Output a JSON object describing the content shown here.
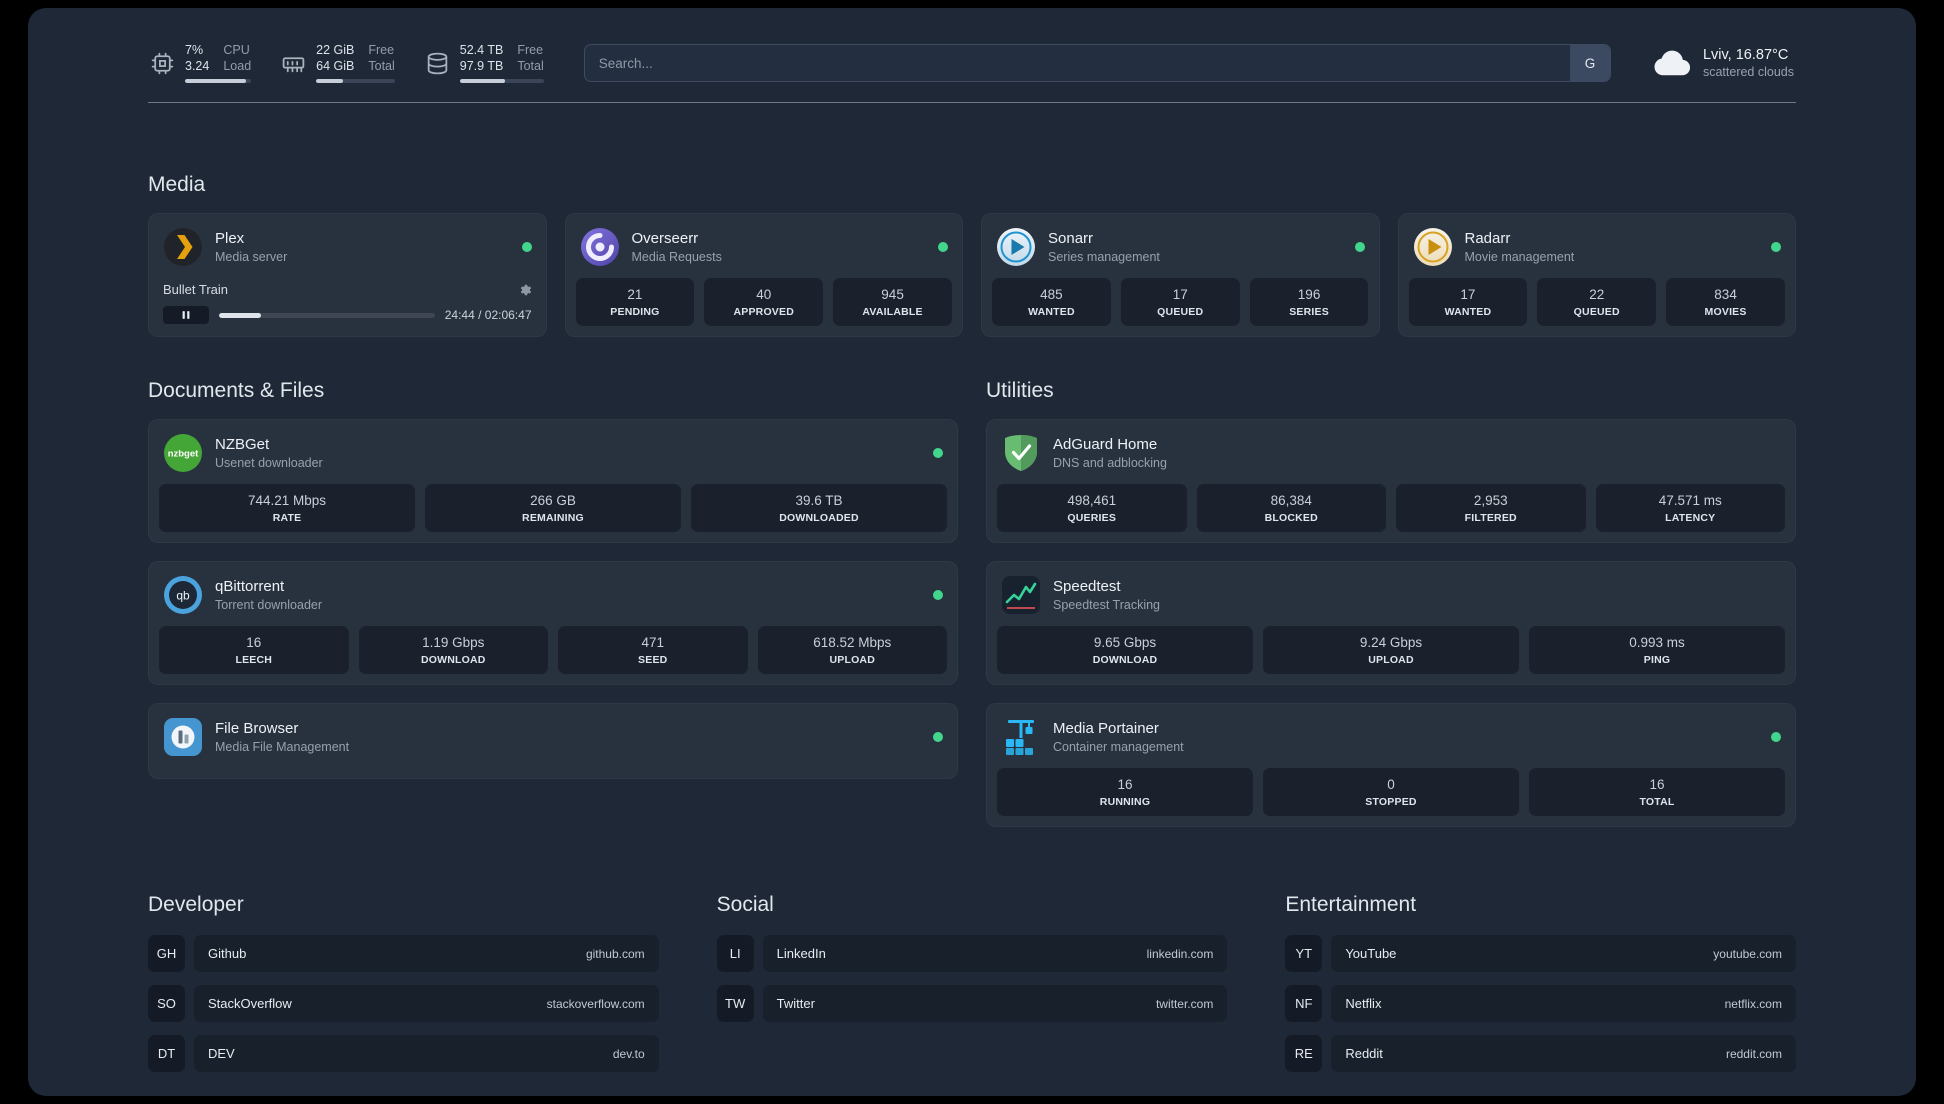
{
  "topbar": {
    "resources": [
      {
        "icon": "cpu",
        "col1": [
          "7%",
          "3.24"
        ],
        "col2": [
          "CPU",
          "Load"
        ],
        "bar_percent": 92
      },
      {
        "icon": "memory",
        "col1": [
          "22 GiB",
          "64 GiB"
        ],
        "col2": [
          "Free",
          "Total"
        ],
        "bar_percent": 34
      },
      {
        "icon": "disk",
        "col1": [
          "52.4 TB",
          "97.9 TB"
        ],
        "col2": [
          "Free",
          "Total"
        ],
        "bar_percent": 54
      }
    ],
    "search": {
      "placeholder": "Search...",
      "button_label": "G"
    },
    "weather": {
      "location": "Lviv, 16.87°C",
      "condition": "scattered clouds"
    }
  },
  "media": {
    "title": "Media",
    "cards": [
      {
        "id": "plex",
        "title": "Plex",
        "subtitle": "Media server",
        "status": "online",
        "player": {
          "track": "Bullet Train",
          "time": "24:44 / 02:06:47",
          "progress_percent": 19.5
        }
      },
      {
        "id": "overseerr",
        "title": "Overseerr",
        "subtitle": "Media Requests",
        "status": "online",
        "stats": [
          {
            "value": "21",
            "label": "PENDING"
          },
          {
            "value": "40",
            "label": "APPROVED"
          },
          {
            "value": "945",
            "label": "AVAILABLE"
          }
        ]
      },
      {
        "id": "sonarr",
        "title": "Sonarr",
        "subtitle": "Series management",
        "status": "online",
        "stats": [
          {
            "value": "485",
            "label": "WANTED"
          },
          {
            "value": "17",
            "label": "QUEUED"
          },
          {
            "value": "196",
            "label": "SERIES"
          }
        ]
      },
      {
        "id": "radarr",
        "title": "Radarr",
        "subtitle": "Movie management",
        "status": "online",
        "stats": [
          {
            "value": "17",
            "label": "WANTED"
          },
          {
            "value": "22",
            "label": "QUEUED"
          },
          {
            "value": "834",
            "label": "MOVIES"
          }
        ]
      }
    ]
  },
  "documents": {
    "title": "Documents & Files",
    "cards": [
      {
        "id": "nzbget",
        "title": "NZBGet",
        "subtitle": "Usenet downloader",
        "status": "online",
        "stats": [
          {
            "value": "744.21 Mbps",
            "label": "RATE"
          },
          {
            "value": "266 GB",
            "label": "REMAINING"
          },
          {
            "value": "39.6 TB",
            "label": "DOWNLOADED"
          }
        ]
      },
      {
        "id": "qbittorrent",
        "title": "qBittorrent",
        "subtitle": "Torrent downloader",
        "status": "online",
        "stats": [
          {
            "value": "16",
            "label": "LEECH"
          },
          {
            "value": "1.19 Gbps",
            "label": "DOWNLOAD"
          },
          {
            "value": "471",
            "label": "SEED"
          },
          {
            "value": "618.52 Mbps",
            "label": "UPLOAD"
          }
        ]
      },
      {
        "id": "filebrowser",
        "title": "File Browser",
        "subtitle": "Media File Management",
        "status": "online",
        "stats": []
      }
    ]
  },
  "utilities": {
    "title": "Utilities",
    "cards": [
      {
        "id": "adguard",
        "title": "AdGuard Home",
        "subtitle": "DNS and adblocking",
        "status": "none",
        "stats": [
          {
            "value": "498,461",
            "label": "QUERIES"
          },
          {
            "value": "86,384",
            "label": "BLOCKED"
          },
          {
            "value": "2,953",
            "label": "FILTERED"
          },
          {
            "value": "47.571 ms",
            "label": "LATENCY"
          }
        ]
      },
      {
        "id": "speedtest",
        "title": "Speedtest",
        "subtitle": "Speedtest Tracking",
        "status": "none",
        "stats": [
          {
            "value": "9.65 Gbps",
            "label": "DOWNLOAD"
          },
          {
            "value": "9.24 Gbps",
            "label": "UPLOAD"
          },
          {
            "value": "0.993 ms",
            "label": "PING"
          }
        ]
      },
      {
        "id": "portainer",
        "title": "Media Portainer",
        "subtitle": "Container management",
        "status": "online",
        "stats": [
          {
            "value": "16",
            "label": "RUNNING"
          },
          {
            "value": "0",
            "label": "STOPPED"
          },
          {
            "value": "16",
            "label": "TOTAL"
          }
        ]
      }
    ]
  },
  "bookmarks": [
    {
      "title": "Developer",
      "items": [
        {
          "abbr": "GH",
          "name": "Github",
          "url": "github.com"
        },
        {
          "abbr": "SO",
          "name": "StackOverflow",
          "url": "stackoverflow.com"
        },
        {
          "abbr": "DT",
          "name": "DEV",
          "url": "dev.to"
        }
      ]
    },
    {
      "title": "Social",
      "items": [
        {
          "abbr": "LI",
          "name": "LinkedIn",
          "url": "linkedin.com"
        },
        {
          "abbr": "TW",
          "name": "Twitter",
          "url": "twitter.com"
        }
      ]
    },
    {
      "title": "Entertainment",
      "items": [
        {
          "abbr": "YT",
          "name": "YouTube",
          "url": "youtube.com"
        },
        {
          "abbr": "NF",
          "name": "Netflix",
          "url": "netflix.com"
        },
        {
          "abbr": "RE",
          "name": "Reddit",
          "url": "reddit.com"
        }
      ]
    }
  ],
  "colors": {
    "status_online": "#42d68c",
    "background": "#1e2836"
  }
}
